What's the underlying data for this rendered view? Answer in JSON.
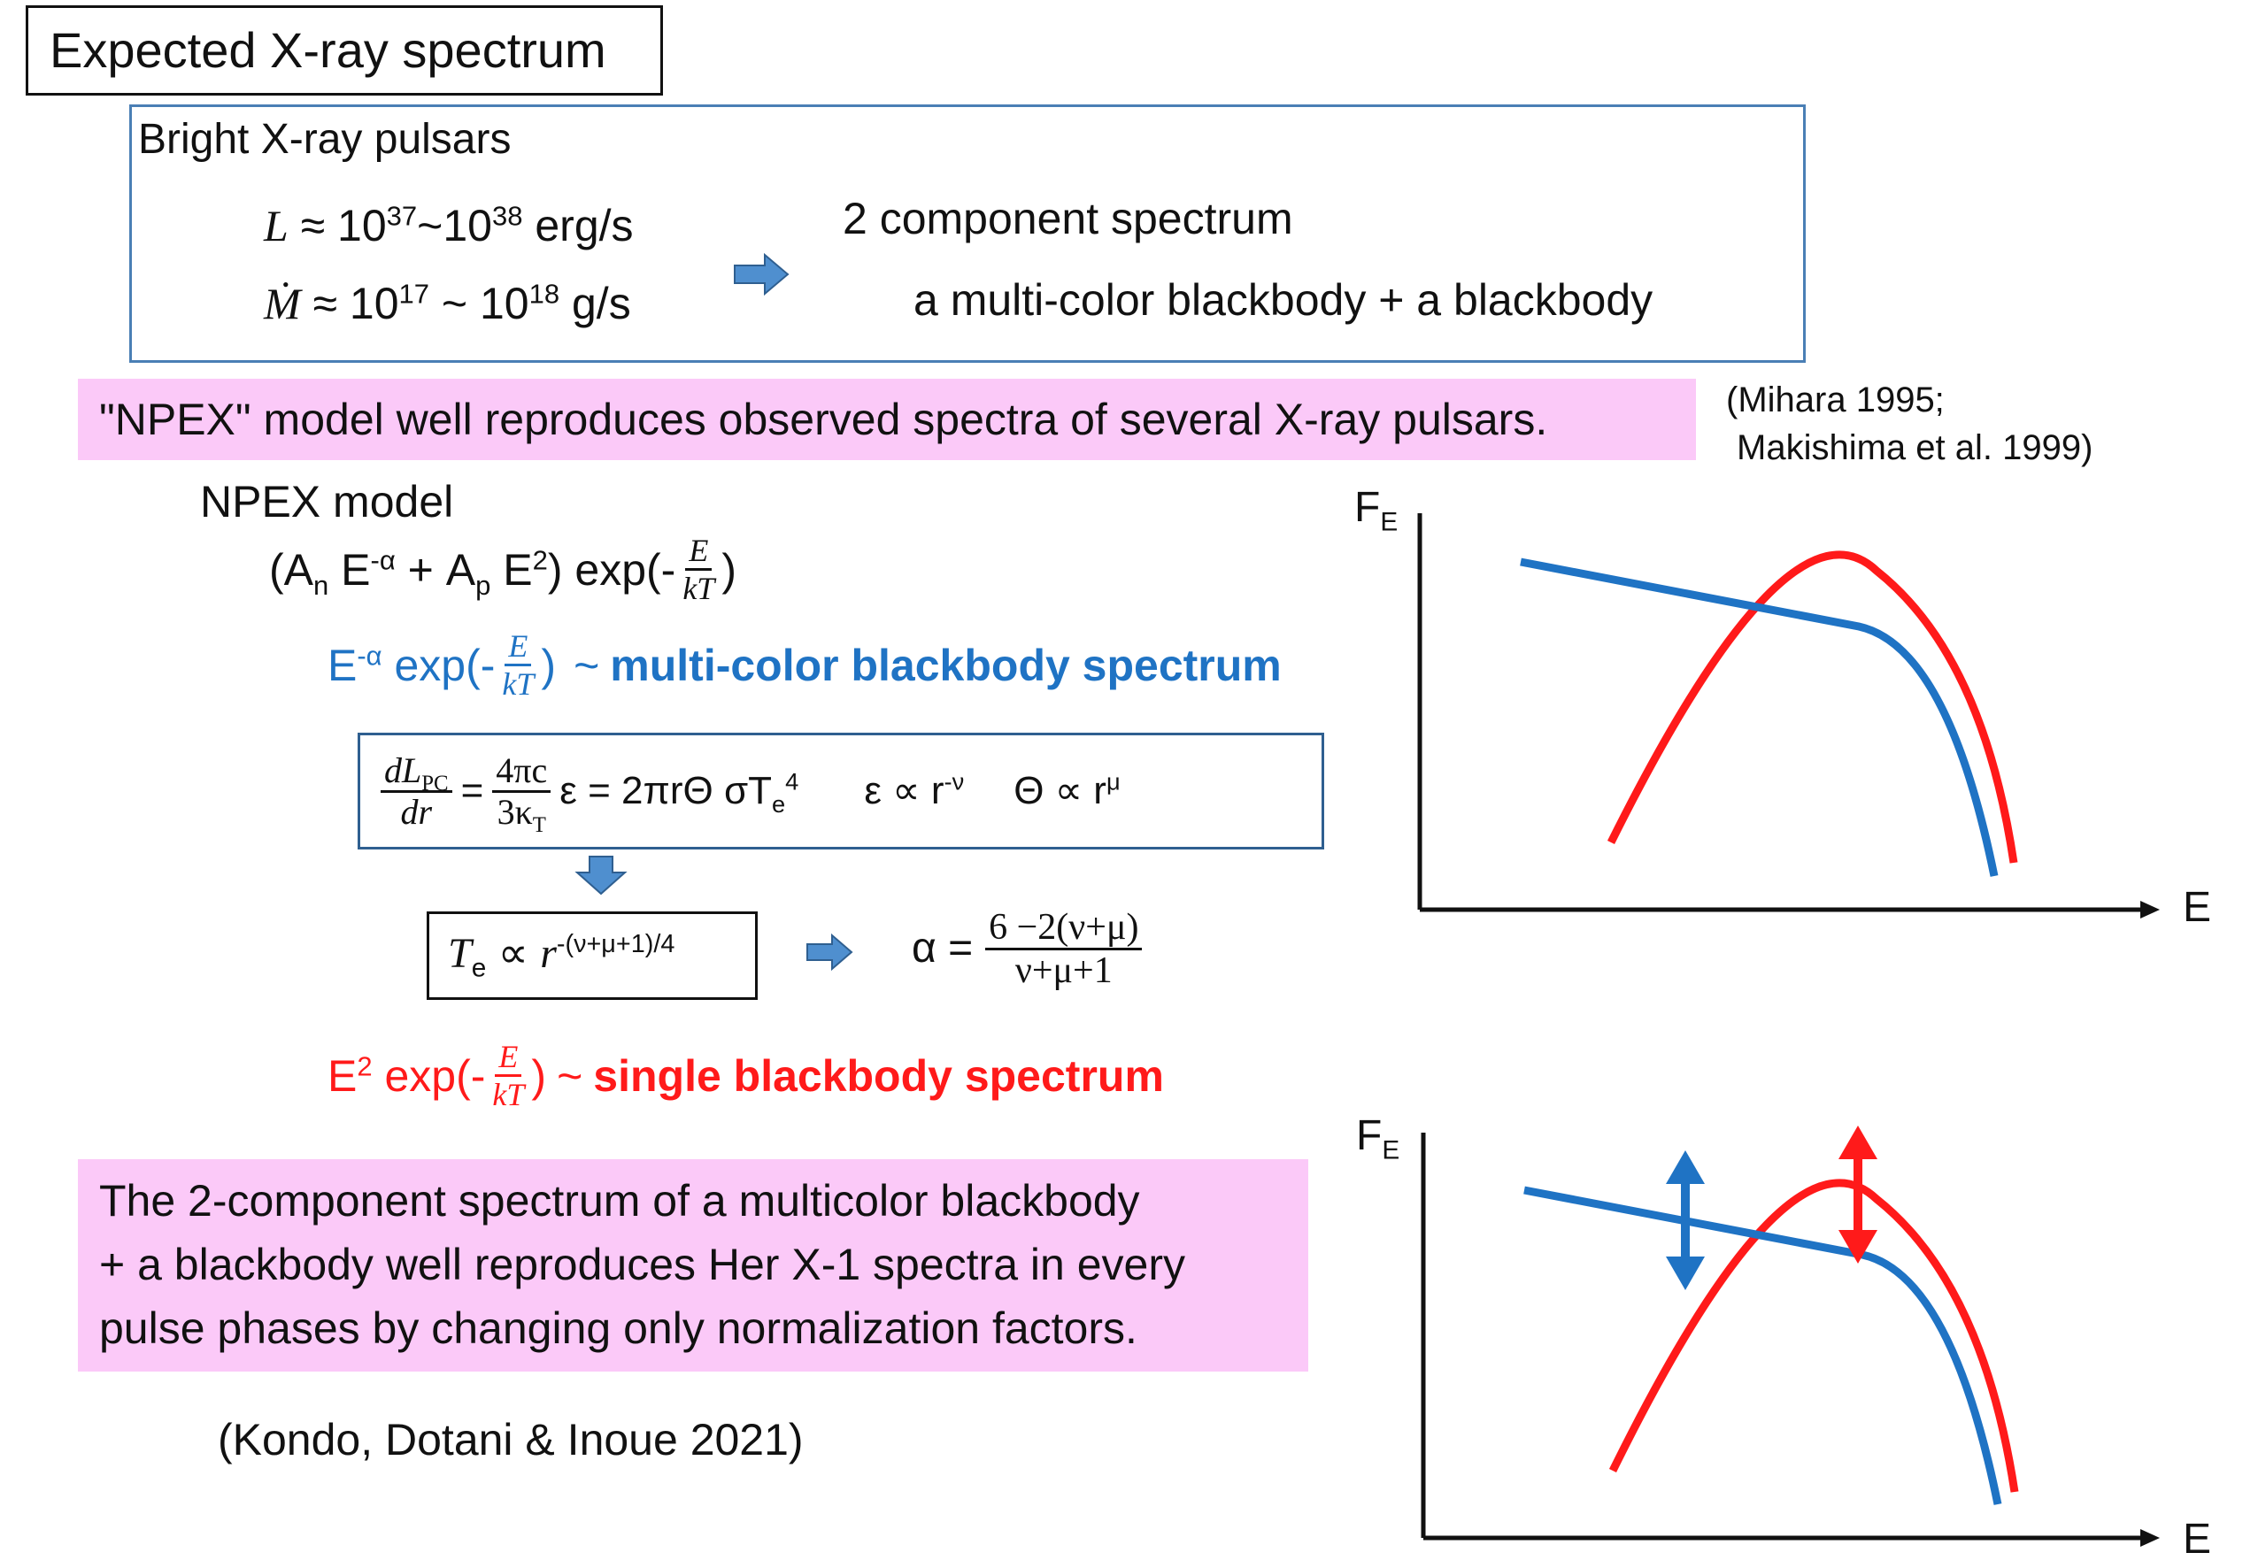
{
  "title": "Expected X-ray spectrum",
  "bright": {
    "heading": "Bright X-ray pulsars",
    "lum_sym": "L",
    "lum_approx": "≈ 10",
    "lum_exp1": "37",
    "lum_mid": "~10",
    "lum_exp2": "38",
    "lum_unit": "erg/s",
    "mdot_sym": "Ṁ",
    "mdot_approx": "≈ 10",
    "mdot_exp1": "17",
    "mdot_mid": " ~ 10",
    "mdot_exp2": "18",
    "mdot_unit": "g/s",
    "result_line1": "2 component spectrum",
    "result_line2": "a multi-color blackbody + a blackbody"
  },
  "npex_banner": "\"NPEX\" model well reproduces observed spectra of several X-ray pulsars.",
  "refs": {
    "line1": "(Mihara 1995;",
    "line2": "Makishima et al. 1999)"
  },
  "npex": {
    "label": "NPEX model",
    "f1_a": "(A",
    "f1_n": "n",
    "f1_b": " E",
    "f1_alpha": "-α",
    "f1_c": " + A",
    "f1_p": "p",
    "f1_d": " E",
    "f1_two": "2",
    "f1_e": ") exp(-",
    "f1_close": ")",
    "frac_num": "E",
    "frac_den": "kT",
    "blue_pre": "E",
    "blue_alpha": "-α",
    "blue_exp": " exp(-",
    "blue_close": ")",
    "blue_tilde": "~",
    "blue_desc": "multi-color blackbody spectrum",
    "red_pre": "E",
    "red_two": "2",
    "red_exp": " exp(-",
    "red_close": ")",
    "red_tilde": "~",
    "red_desc": "single blackbody spectrum"
  },
  "eq": {
    "dl_num": "dL",
    "dl_sub": "PC",
    "dl_den": "dr",
    "eq1": "=",
    "pc_num": "4πc",
    "pc_den": "3κ",
    "pc_den_sub": "T",
    "rhs": "ε = 2πrΘ σT",
    "rhs_sub": "e",
    "rhs_sup": "4",
    "eps": "ε ∝ r",
    "eps_sup": "-ν",
    "theta": "Θ ∝ r",
    "theta_sup": "μ",
    "te_sym": "T",
    "te_sub": "e",
    "te_prop": " ∝ ",
    "te_r": "r",
    "te_sup": "-(ν+μ+1)/4",
    "alpha": "α =",
    "alpha_num": "6 −2(ν+μ)",
    "alpha_den": "ν+μ+1"
  },
  "conclusion": {
    "line1": "The 2-component spectrum of a multicolor blackbody",
    "line2": "+ a blackbody well reproduces Her X-1 spectra in every",
    "line3": "pulse phases by changing only normalization factors."
  },
  "citation": "(Kondo, Dotani & Inoue 2021)",
  "plots": {
    "y_label": "F",
    "y_sub": "E",
    "x_label": "E",
    "blue_color": "#1f73c4",
    "red_color": "#ff1a1a",
    "arrow_color": "#4f8fcf"
  }
}
